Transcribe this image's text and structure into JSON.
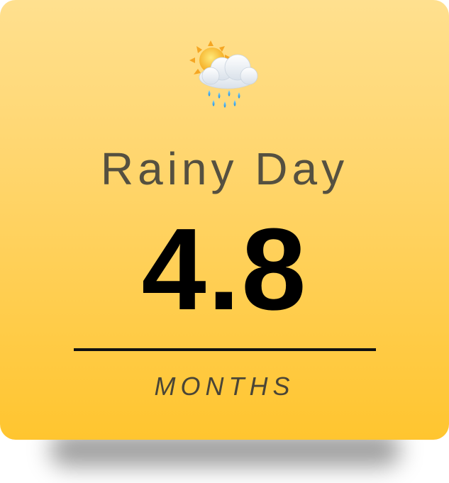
{
  "card": {
    "icon": "sun-behind-rain-cloud-icon",
    "title": "Rainy Day",
    "value": "4.8",
    "unit": "MONTHS"
  },
  "colors": {
    "gradient_top": "#ffe08f",
    "gradient_bottom": "#ffc52f",
    "title_text": "#555040",
    "value_text": "#000000",
    "divider": "#111111",
    "unit_text": "#4a4536"
  }
}
